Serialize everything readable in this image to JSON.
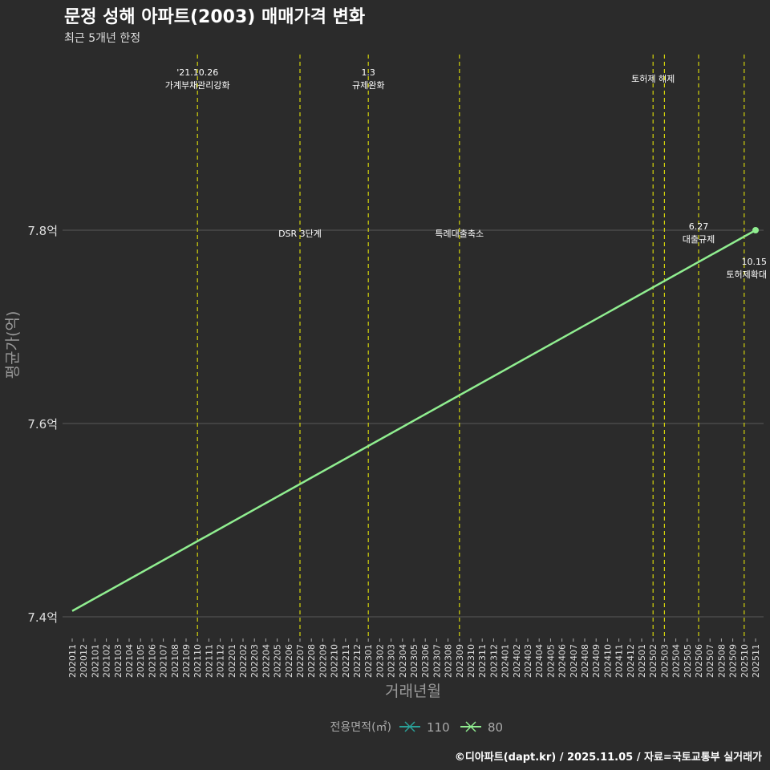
{
  "chart_data": {
    "type": "line",
    "title": "문정 성해 아파트(2003) 매매가격 변화",
    "subtitle": "최근 5개년 한정",
    "xlabel": "거래년월",
    "ylabel": "평균가(억)",
    "x": [
      "202011",
      "202012",
      "202101",
      "202102",
      "202103",
      "202104",
      "202105",
      "202106",
      "202107",
      "202108",
      "202109",
      "202110",
      "202111",
      "202112",
      "202201",
      "202202",
      "202203",
      "202204",
      "202205",
      "202206",
      "202207",
      "202208",
      "202209",
      "202210",
      "202211",
      "202212",
      "202301",
      "202302",
      "202303",
      "202304",
      "202305",
      "202306",
      "202307",
      "202308",
      "202309",
      "202310",
      "202311",
      "202312",
      "202401",
      "202402",
      "202403",
      "202404",
      "202405",
      "202406",
      "202407",
      "202408",
      "202409",
      "202410",
      "202411",
      "202412",
      "202501",
      "202502",
      "202503",
      "202504",
      "202505",
      "202506",
      "202507",
      "202508",
      "202509",
      "202510",
      "202511"
    ],
    "ylim": [
      7.385,
      7.82
    ],
    "yticks": [
      7.4,
      7.6,
      7.8
    ],
    "ytick_labels": [
      "7.4억",
      "7.6억",
      "7.8억"
    ],
    "series": [
      {
        "name": "110",
        "color": "#2aa198",
        "points": []
      },
      {
        "name": "80",
        "color": "#90ee90",
        "points": [
          {
            "x": "202011",
            "y": 7.406
          },
          {
            "x": "202511",
            "y": 7.8
          }
        ]
      }
    ],
    "legend": {
      "title": "전용면적(㎡)",
      "position": "bottom"
    },
    "events": [
      {
        "x": "202110",
        "lines": [
          "'21.10.26",
          "가계부채관리강화"
        ],
        "pos": "top"
      },
      {
        "x": "202207",
        "lines": [
          "DSR 3단계"
        ],
        "pos": "mid"
      },
      {
        "x": "202301",
        "lines": [
          "1.3",
          "규제완화"
        ],
        "pos": "top"
      },
      {
        "x": "202309",
        "lines": [
          "특례대출축소"
        ],
        "pos": "mid"
      },
      {
        "x": "202502",
        "lines": [
          "토허제 해제"
        ],
        "pos": "top2"
      },
      {
        "x": "202503",
        "lines": [],
        "pos": "none"
      },
      {
        "x": "202506",
        "lines": [
          "6.27",
          "대출규제"
        ],
        "pos": "mid2"
      },
      {
        "x": "202510",
        "lines": [
          "10.15",
          "토허제확대"
        ],
        "pos": "mid2"
      }
    ],
    "caption": "©디아파트(dapt.kr) / 2025.11.05 / 자료=국토교통부 실거래가"
  }
}
